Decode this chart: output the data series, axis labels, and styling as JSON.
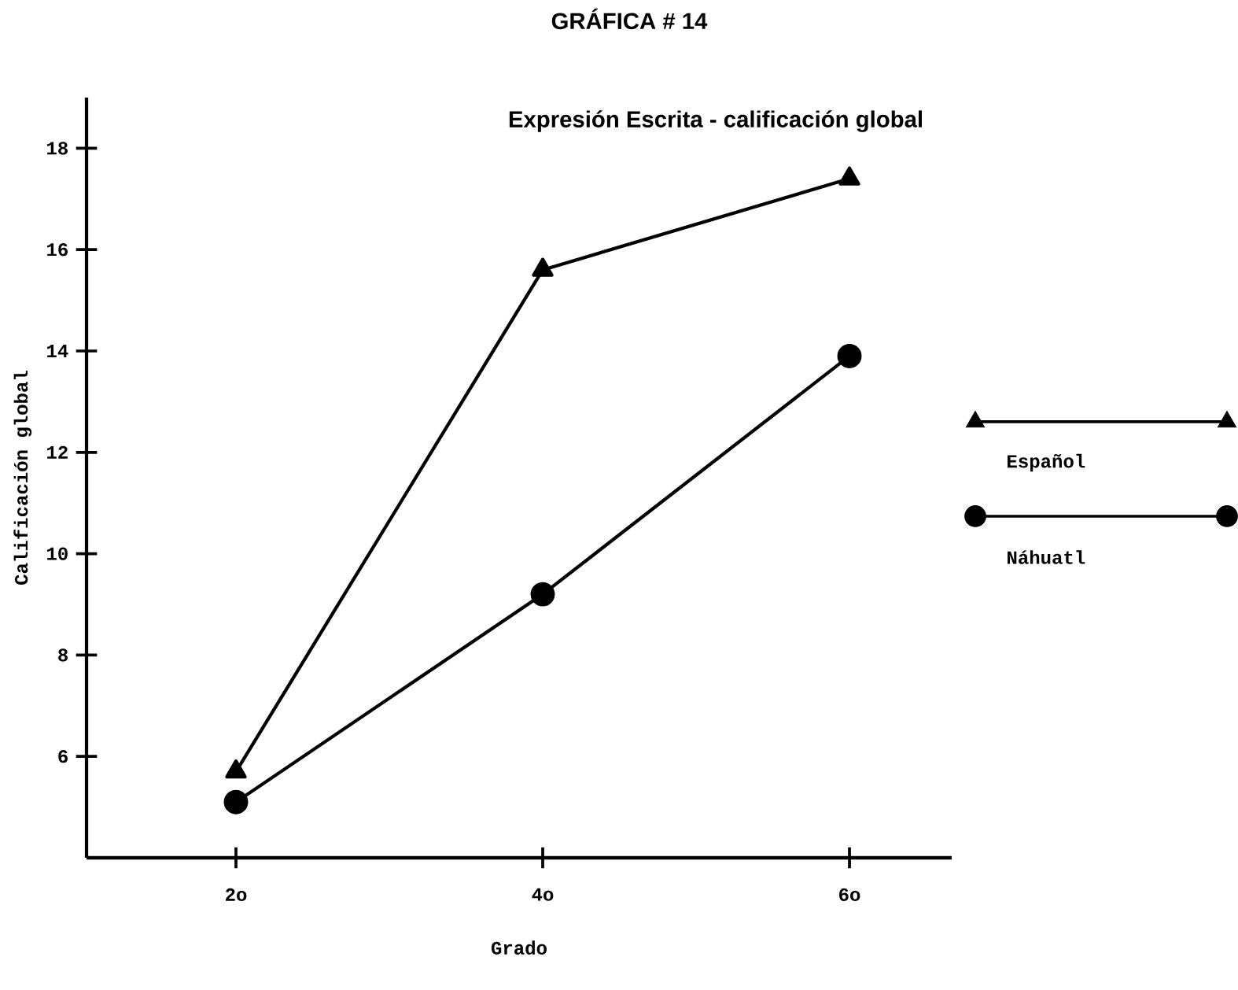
{
  "chart_data": {
    "type": "line",
    "title": "GRÁFICA # 14",
    "subtitle": "Expresión Escrita - calificación global",
    "xlabel": "Grado",
    "ylabel": "Calificación global",
    "categories": [
      "2o",
      "4o",
      "6o"
    ],
    "series": [
      {
        "name": "Español",
        "color": "#000000",
        "marker": "triangle",
        "values": [
          5.7,
          15.6,
          17.4
        ]
      },
      {
        "name": "Náhuatl",
        "color": "#000000",
        "marker": "circle",
        "values": [
          5.1,
          9.2,
          13.9
        ]
      }
    ],
    "ylim": [
      4,
      19
    ],
    "yticks": [
      6,
      8,
      10,
      12,
      14,
      16,
      18
    ],
    "legend": "right",
    "grid": false,
    "line_style": "solid"
  }
}
